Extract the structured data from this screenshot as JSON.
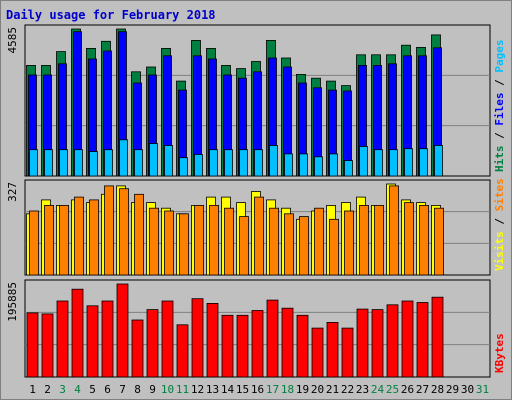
{
  "title": "Daily usage for February 2018",
  "colors": {
    "background": "#c0c0c0",
    "panel": "#c0c0c0",
    "title": "#0000cc",
    "hits": "#008040",
    "files": "#0000ff",
    "pages": "#00c0ff",
    "visits": "#ffff00",
    "sites": "#ff8000",
    "kbytes": "#ff0000",
    "day_weekday": "#000000",
    "day_weekend": "#008040"
  },
  "legends": {
    "top": [
      {
        "text": "Hits",
        "color": "#008040"
      },
      {
        "text": "Files",
        "color": "#0000ff"
      },
      {
        "text": "Pages",
        "color": "#00c0ff"
      }
    ],
    "mid": [
      {
        "text": "Visits",
        "color": "#ffff00"
      },
      {
        "text": "Sites",
        "color": "#ff8000"
      }
    ],
    "bottom": [
      {
        "text": "KBytes",
        "color": "#ff0000"
      }
    ]
  },
  "chart_data": [
    {
      "type": "bar",
      "panel": "hits-files-pages",
      "ymax_label": "4585",
      "ylim": [
        0,
        4585
      ],
      "categories": [
        "1",
        "2",
        "3",
        "4",
        "5",
        "6",
        "7",
        "8",
        "9",
        "10",
        "11",
        "12",
        "13",
        "14",
        "15",
        "16",
        "17",
        "18",
        "19",
        "20",
        "21",
        "22",
        "23",
        "24",
        "25",
        "26",
        "27",
        "28",
        "29",
        "30",
        "31"
      ],
      "series": [
        {
          "name": "Hits",
          "color": "#008040",
          "values": [
            3450,
            3450,
            3880,
            4585,
            3980,
            4200,
            4585,
            3250,
            3400,
            3980,
            2960,
            4230,
            3980,
            3450,
            3350,
            3570,
            4230,
            3680,
            3170,
            3050,
            2960,
            2820,
            3780,
            3780,
            3780,
            4080,
            4010,
            4400,
            0,
            0,
            0
          ]
        },
        {
          "name": "Files",
          "color": "#0000ff",
          "values": [
            3150,
            3150,
            3500,
            4500,
            3650,
            3900,
            4500,
            2900,
            3150,
            3750,
            2680,
            3750,
            3650,
            3150,
            3050,
            3250,
            3680,
            3400,
            2900,
            2750,
            2680,
            2650,
            3450,
            3450,
            3500,
            3750,
            3750,
            4000,
            0,
            0,
            0
          ]
        },
        {
          "name": "Pages",
          "color": "#00c0ff",
          "values": [
            820,
            820,
            820,
            820,
            760,
            820,
            1130,
            820,
            1010,
            950,
            570,
            670,
            820,
            820,
            820,
            820,
            950,
            690,
            690,
            600,
            690,
            480,
            920,
            820,
            820,
            850,
            850,
            950,
            0,
            0,
            0
          ]
        }
      ]
    },
    {
      "type": "bar",
      "panel": "visits-sites",
      "ymax_label": "327",
      "ylim": [
        0,
        327
      ],
      "categories": [
        "1",
        "2",
        "3",
        "4",
        "5",
        "6",
        "7",
        "8",
        "9",
        "10",
        "11",
        "12",
        "13",
        "14",
        "15",
        "16",
        "17",
        "18",
        "19",
        "20",
        "21",
        "22",
        "23",
        "24",
        "25",
        "26",
        "27",
        "28",
        "29",
        "30",
        "31"
      ],
      "series": [
        {
          "name": "Visits",
          "color": "#ffff00",
          "values": [
            220,
            270,
            250,
            270,
            260,
            290,
            320,
            260,
            260,
            240,
            220,
            250,
            280,
            280,
            260,
            300,
            270,
            240,
            200,
            230,
            250,
            260,
            280,
            250,
            327,
            270,
            260,
            250,
            0,
            0,
            0
          ]
        },
        {
          "name": "Sites",
          "color": "#ff8000",
          "values": [
            230,
            250,
            250,
            280,
            270,
            320,
            310,
            290,
            240,
            230,
            220,
            250,
            250,
            240,
            210,
            280,
            240,
            220,
            210,
            240,
            200,
            230,
            250,
            250,
            320,
            260,
            250,
            240,
            0,
            0,
            0
          ]
        }
      ]
    },
    {
      "type": "bar",
      "panel": "kbytes",
      "ymax_label": "195885",
      "ylim": [
        0,
        195885
      ],
      "categories": [
        "1",
        "2",
        "3",
        "4",
        "5",
        "6",
        "7",
        "8",
        "9",
        "10",
        "11",
        "12",
        "13",
        "14",
        "15",
        "16",
        "17",
        "18",
        "19",
        "20",
        "21",
        "22",
        "23",
        "24",
        "25",
        "26",
        "27",
        "28",
        "29",
        "30",
        "31"
      ],
      "series": [
        {
          "name": "KBytes",
          "color": "#ff0000",
          "values": [
            135000,
            133000,
            160000,
            185000,
            150000,
            160000,
            195885,
            120000,
            142000,
            160000,
            110000,
            165000,
            155000,
            130000,
            130000,
            140000,
            162000,
            145000,
            130000,
            103000,
            115000,
            103000,
            143000,
            142000,
            152000,
            160000,
            157000,
            168000,
            0,
            0,
            0
          ]
        }
      ]
    }
  ],
  "x_axis": {
    "days": [
      "1",
      "2",
      "3",
      "4",
      "5",
      "6",
      "7",
      "8",
      "9",
      "10",
      "11",
      "12",
      "13",
      "14",
      "15",
      "16",
      "17",
      "18",
      "19",
      "20",
      "21",
      "22",
      "23",
      "24",
      "25",
      "26",
      "27",
      "28",
      "29",
      "30",
      "31"
    ],
    "weekend": [
      "3",
      "4",
      "10",
      "11",
      "17",
      "18",
      "24",
      "25",
      "31"
    ]
  }
}
